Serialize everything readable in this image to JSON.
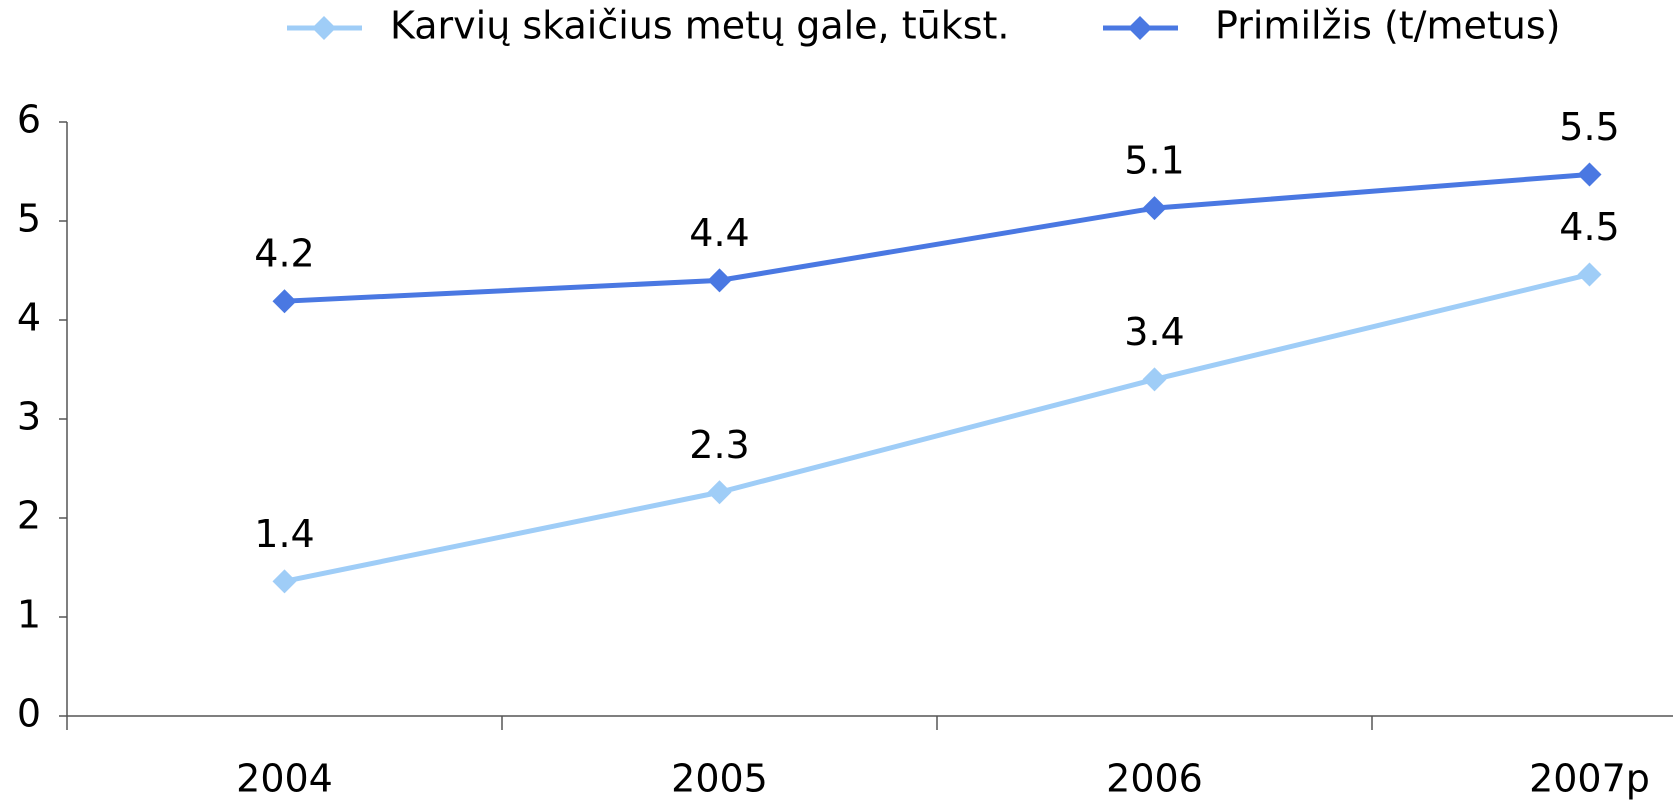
{
  "chart_data": {
    "type": "line",
    "categories": [
      "2004",
      "2005",
      "2006",
      "2007p"
    ],
    "series": [
      {
        "name": "Karvių skaičius metų gale, tūkst.",
        "color": "#9fcdf7",
        "values": [
          1.36,
          2.26,
          3.4,
          4.46
        ],
        "value_labels": [
          "1.4",
          "2.3",
          "3.4",
          "4.5"
        ]
      },
      {
        "name": "Primilžis (t/metus)",
        "color": "#4a78e2",
        "values": [
          4.19,
          4.4,
          5.13,
          5.47
        ],
        "value_labels": [
          "4.2",
          "4.4",
          "5.1",
          "5.5"
        ]
      }
    ],
    "ylim": [
      0,
      6
    ],
    "yticks": [
      0,
      1,
      2,
      3,
      4,
      5,
      6
    ],
    "legend": "top"
  }
}
